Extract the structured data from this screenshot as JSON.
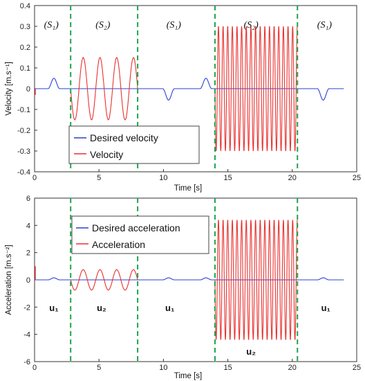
{
  "chart_data": [
    {
      "type": "line",
      "ylabel": "Velocity [m.s⁻¹]",
      "xlabel": "Time [s]",
      "xlim": [
        0,
        25
      ],
      "ylim": [
        -0.4,
        0.4
      ],
      "xticks": [
        "0",
        "5",
        "10",
        "15",
        "20",
        "25"
      ],
      "yticks": [
        "0.4",
        "0.3",
        "0.2",
        "0.1",
        "0",
        "-0.1",
        "-0.2",
        "-0.3",
        "-0.4"
      ],
      "grid": false,
      "legend_position": "lower-left",
      "segment_labels": [
        "(S₁)",
        "(S₂)",
        "(S₁)",
        "(S₂)",
        "(S₁)"
      ],
      "segment_label_x": [
        1.3,
        5.3,
        10.8,
        16.8,
        22.5
      ],
      "switch_times": [
        2.8,
        8.0,
        14.0,
        20.4
      ],
      "series": [
        {
          "name": "Desired velocity",
          "color": "#2c3fd6",
          "description": "zero baseline with smooth bumps during S1 phases",
          "bumps": [
            {
              "center": 1.5,
              "amplitude": 0.05,
              "width": 0.9
            },
            {
              "center": 10.4,
              "amplitude": -0.055,
              "width": 0.9
            },
            {
              "center": 13.3,
              "amplitude": 0.05,
              "width": 0.9
            },
            {
              "center": 22.4,
              "amplitude": -0.055,
              "width": 0.9
            }
          ]
        },
        {
          "name": "Velocity",
          "color": "#e8312f",
          "oscillations": [
            {
              "start": 2.8,
              "end": 8.0,
              "amplitude": 0.15,
              "period": 1.3,
              "sign": -1
            },
            {
              "start": 14.0,
              "end": 20.4,
              "amplitude": 0.3,
              "period": 0.36,
              "sign": -1
            }
          ]
        }
      ]
    },
    {
      "type": "line",
      "ylabel": "Acceleration  [m.s⁻²]",
      "xlabel": "Time [s]",
      "xlim": [
        0,
        25
      ],
      "ylim": [
        -6,
        6
      ],
      "xticks": [
        "0",
        "5",
        "10",
        "15",
        "20",
        "25"
      ],
      "yticks": [
        "6",
        "4",
        "2",
        "0",
        "-2",
        "-4",
        "-6"
      ],
      "grid": false,
      "legend_position": "upper-left",
      "control_labels": [
        "u₁",
        "u₂",
        "u₁",
        "u₂",
        "u₁"
      ],
      "control_label_x": [
        1.5,
        5.2,
        10.5,
        16.8,
        22.6
      ],
      "control_label_y": [
        -2.3,
        -2.3,
        -2.3,
        -5.5,
        -2.3
      ],
      "switch_times": [
        2.8,
        8.0,
        14.0,
        20.4
      ],
      "series": [
        {
          "name": "Desired acceleration",
          "color": "#2c3fd6",
          "description": "near-zero baseline with small wiggles during S1 phases",
          "bumps": [
            {
              "center": 1.5,
              "amplitude": 0.15,
              "width": 0.9
            },
            {
              "center": 10.4,
              "amplitude": 0.15,
              "width": 0.9
            },
            {
              "center": 13.3,
              "amplitude": 0.15,
              "width": 0.9
            },
            {
              "center": 22.4,
              "amplitude": 0.15,
              "width": 0.9
            }
          ]
        },
        {
          "name": "Acceleration",
          "color": "#e8312f",
          "oscillations": [
            {
              "start": 2.8,
              "end": 8.0,
              "amplitude": 0.75,
              "period": 1.3,
              "sign": -1
            },
            {
              "start": 14.0,
              "end": 20.4,
              "amplitude": 4.4,
              "period": 0.36,
              "sign": -1
            }
          ]
        }
      ]
    }
  ]
}
